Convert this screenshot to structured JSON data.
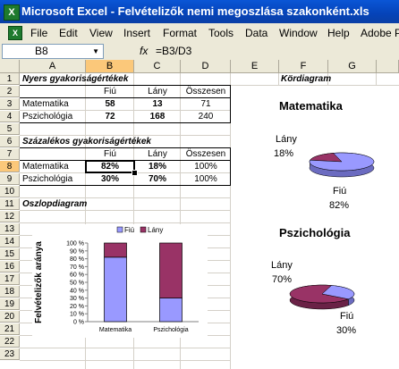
{
  "window": {
    "title": "Microsoft Excel - Felvételizők nemi megoszlása szakonként.xls",
    "app_icon": "excel-icon"
  },
  "menu": [
    "File",
    "Edit",
    "View",
    "Insert",
    "Format",
    "Tools",
    "Data",
    "Window",
    "Help",
    "Adobe PI"
  ],
  "formula_bar": {
    "name_box": "B8",
    "fx": "fx",
    "formula": "=B3/D3"
  },
  "columns": [
    "A",
    "B",
    "C",
    "D",
    "E",
    "F",
    "G"
  ],
  "selected_column": "B",
  "rows": [
    "1",
    "2",
    "3",
    "4",
    "5",
    "6",
    "7",
    "8",
    "9",
    "10",
    "11",
    "12",
    "13",
    "14",
    "15",
    "16",
    "17",
    "18",
    "19",
    "20",
    "21",
    "22",
    "23"
  ],
  "selected_row": "8",
  "cells": {
    "A1": "Nyers gyakoriságértékek",
    "B2": "Fiú",
    "C2": "Lány",
    "D2": "Összesen",
    "A3": "Matematika",
    "B3": "58",
    "C3": "13",
    "D3": "71",
    "A4": "Pszichológia",
    "B4": "72",
    "C4": "168",
    "D4": "240",
    "A6": "Százalékos gyakoriságértékek",
    "B7": "Fiú",
    "C7": "Lány",
    "D7": "Összesen",
    "A8": "Matematika",
    "B8": "82%",
    "C8": "18%",
    "D8": "100%",
    "A9": "Pszichológia",
    "B9": "30%",
    "C9": "70%",
    "D9": "100%",
    "A11": "Oszlopdiagram",
    "F1": "Kördiagram"
  },
  "colors": {
    "fiu": "#9999ff",
    "lany": "#993366",
    "selection": "#fbc87a"
  },
  "chart_data": [
    {
      "type": "bar",
      "stacked": "100%",
      "categories": [
        "Matematika",
        "Pszichológia"
      ],
      "series": [
        {
          "name": "Fiú",
          "values": [
            82,
            30
          ]
        },
        {
          "name": "Lány",
          "values": [
            18,
            70
          ]
        }
      ],
      "ylabel": "Felvételizők aránya",
      "ylim": [
        0,
        100
      ],
      "yticks": [
        "0 %",
        "10 %",
        "20 %",
        "30 %",
        "40 %",
        "50 %",
        "60 %",
        "70 %",
        "80 %",
        "90 %",
        "100 %"
      ],
      "legend": "top",
      "grid": false
    },
    {
      "type": "pie",
      "title": "Matematika",
      "labels": [
        "Lány",
        "Fiú"
      ],
      "values": [
        18,
        82
      ],
      "value_labels": [
        "18%",
        "82%"
      ]
    },
    {
      "type": "pie",
      "title": "Pszichológia",
      "labels": [
        "Lány",
        "Fiú"
      ],
      "values": [
        70,
        30
      ],
      "value_labels": [
        "70%",
        "30%"
      ]
    }
  ]
}
